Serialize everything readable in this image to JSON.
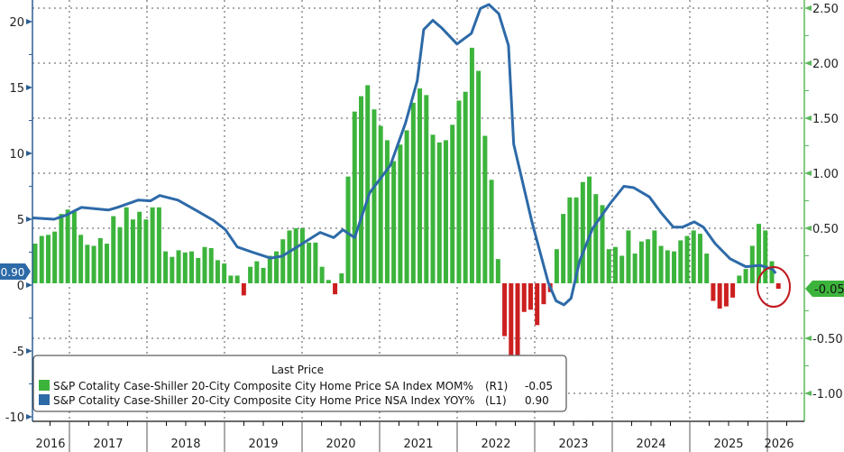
{
  "chart_data": {
    "type": "bar+line",
    "title": "",
    "legend": {
      "title": "Last Price",
      "placement": "bottom-left",
      "entries": [
        {
          "label": "S&P Cotality Case-Shiller 20-City Composite City Home Price SA Index MOM%",
          "axis": "(R1)",
          "last": "-0.05",
          "color": "#3cb43c"
        },
        {
          "label": "S&P Cotality Case-Shiller 20-City Composite City Home Price NSA Index YOY%",
          "axis": "(L1)",
          "last": "0.90",
          "color": "#2d6aa8"
        }
      ]
    },
    "left_axis": {
      "ticks": [
        "20",
        "15",
        "10",
        "5",
        "0",
        "-5",
        "-10"
      ],
      "tick_values": [
        20,
        15,
        10,
        5,
        0,
        -5,
        -10
      ],
      "range": [
        -10.5,
        21.7
      ],
      "last_label": "0.90"
    },
    "right_axis": {
      "ticks": [
        "2.50",
        "2.00",
        "1.50",
        "1.00",
        "0.50",
        "-0.50",
        "-1.00"
      ],
      "tick_values": [
        2.5,
        2.0,
        1.5,
        1.0,
        0.5,
        -0.5,
        -1.0
      ],
      "range": [
        -1.25,
        2.58
      ],
      "last_label": "-0.05"
    },
    "x_years": [
      "2016",
      "2017",
      "2018",
      "2019",
      "2020",
      "2021",
      "2022",
      "2023",
      "2024",
      "2025",
      "2026"
    ],
    "bars_start_month": "2016-07",
    "bars_mom_pct": [
      0.36,
      0.43,
      0.44,
      0.47,
      0.63,
      0.67,
      0.65,
      0.44,
      0.35,
      0.34,
      0.41,
      0.36,
      0.61,
      0.51,
      0.69,
      0.58,
      0.65,
      0.58,
      0.69,
      0.69,
      0.29,
      0.24,
      0.3,
      0.28,
      0.29,
      0.23,
      0.33,
      0.32,
      0.21,
      0.18,
      0.07,
      0.07,
      -0.11,
      0.15,
      0.2,
      0.14,
      0.25,
      0.29,
      0.4,
      0.48,
      0.5,
      0.5,
      0.37,
      0.37,
      0.15,
      0.03,
      -0.1,
      0.09,
      0.97,
      1.56,
      1.7,
      1.8,
      1.58,
      1.43,
      1.3,
      1.11,
      1.26,
      1.39,
      1.64,
      1.77,
      1.71,
      1.35,
      1.28,
      1.3,
      1.44,
      1.66,
      1.74,
      2.14,
      1.93,
      1.34,
      0.94,
      0.22,
      -0.48,
      -0.65,
      -0.65,
      -0.26,
      -0.24,
      -0.38,
      -0.19,
      -0.08,
      0.31,
      0.63,
      0.78,
      0.78,
      0.92,
      0.97,
      0.81,
      0.71,
      0.31,
      0.33,
      0.25,
      0.48,
      0.27,
      0.38,
      0.4,
      0.48,
      0.34,
      0.3,
      0.29,
      0.39,
      0.43,
      0.48,
      0.45,
      0.27,
      -0.16,
      -0.23,
      -0.21,
      -0.13,
      0.07,
      0.13,
      0.34,
      0.54,
      0.48,
      0.2,
      -0.05
    ],
    "line_yoy_pct": [
      [
        -1.2,
        5.1
      ],
      [
        2.9,
        5.0
      ],
      [
        4.7,
        5.3
      ],
      [
        7.1,
        5.9
      ],
      [
        11.2,
        5.7
      ],
      [
        12.6,
        5.9
      ],
      [
        15.8,
        6.45
      ],
      [
        17.7,
        6.4
      ],
      [
        19.1,
        6.8
      ],
      [
        21.9,
        6.45
      ],
      [
        24.6,
        5.7
      ],
      [
        27.4,
        4.9
      ],
      [
        29.2,
        4.2
      ],
      [
        31.0,
        2.9
      ],
      [
        33.3,
        2.5
      ],
      [
        36.1,
        2.05
      ],
      [
        37.9,
        2.2
      ],
      [
        40.2,
        2.9
      ],
      [
        43.7,
        4.0
      ],
      [
        45.8,
        3.6
      ],
      [
        47.2,
        4.2
      ],
      [
        49.0,
        3.6
      ],
      [
        51.3,
        7.0
      ],
      [
        54.5,
        9.1
      ],
      [
        56.8,
        12.3
      ],
      [
        58.6,
        15.5
      ],
      [
        59.6,
        19.4
      ],
      [
        61.0,
        20.1
      ],
      [
        62.4,
        19.5
      ],
      [
        64.7,
        18.3
      ],
      [
        66.9,
        19.1
      ],
      [
        68.3,
        21.0
      ],
      [
        69.6,
        21.3
      ],
      [
        71.1,
        20.6
      ],
      [
        72.6,
        18.2
      ],
      [
        73.4,
        10.7
      ],
      [
        76.2,
        4.8
      ],
      [
        78.7,
        0.2
      ],
      [
        79.9,
        -1.2
      ],
      [
        81.1,
        -1.5
      ],
      [
        82.2,
        -1.0
      ],
      [
        83.5,
        1.8
      ],
      [
        85.5,
        4.3
      ],
      [
        88.2,
        6.2
      ],
      [
        90.3,
        7.5
      ],
      [
        91.8,
        7.4
      ],
      [
        94.2,
        6.7
      ],
      [
        96.0,
        5.5
      ],
      [
        97.9,
        4.4
      ],
      [
        99.3,
        4.4
      ],
      [
        101.1,
        4.8
      ],
      [
        102.5,
        4.4
      ],
      [
        104.3,
        3.15
      ],
      [
        106.6,
        2.0
      ],
      [
        109.0,
        1.4
      ],
      [
        111.2,
        1.5
      ],
      [
        113.1,
        1.2
      ],
      [
        113.6,
        0.9
      ]
    ],
    "colors": {
      "pos_bar": "#3cb43c",
      "neg_bar": "#cc1f1f",
      "line": "#2d6aa8",
      "right_axis": "#5cb85c",
      "left_axis": "#2d5f93",
      "highlight": "#c0181e"
    }
  }
}
